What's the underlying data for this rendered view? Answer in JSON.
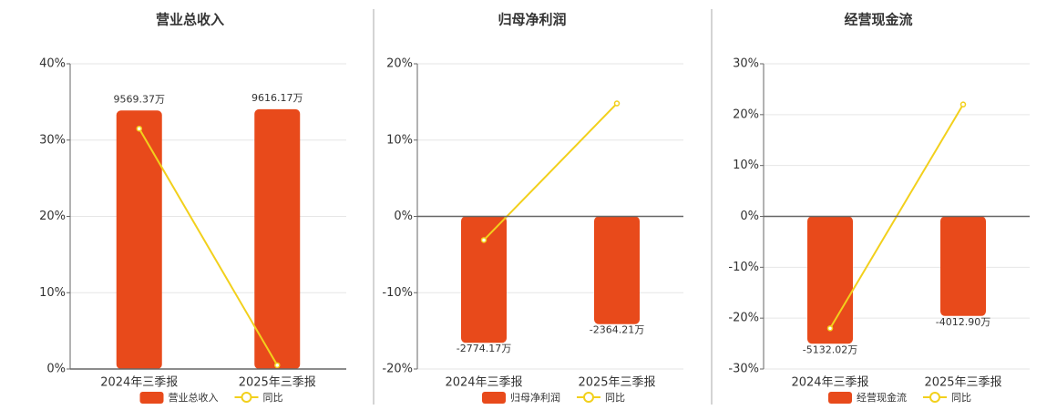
{
  "chart_data": [
    {
      "type": "bar",
      "title": "营业总收入",
      "categories": [
        "2024年三季报",
        "2025年三季报"
      ],
      "series": [
        {
          "name": "营业总收入",
          "color": "#e84a1b",
          "axis": "y2",
          "values": [
            9569.37,
            9616.17
          ],
          "value_labels": [
            "9569.37万",
            "9616.17万"
          ]
        },
        {
          "name": "同比",
          "type": "line",
          "color": "#f2d01c",
          "values": [
            31.5,
            0.5
          ]
        }
      ],
      "ylim": [
        0,
        40
      ],
      "yticks": [
        {
          "value": 0,
          "label": "0%"
        },
        {
          "value": 10,
          "label": "10%"
        },
        {
          "value": 20,
          "label": "20%"
        },
        {
          "value": 30,
          "label": "30%"
        },
        {
          "value": 40,
          "label": "40%"
        }
      ],
      "y2lim": [
        0,
        11300
      ],
      "grid": true
    },
    {
      "type": "bar",
      "title": "归母净利润",
      "categories": [
        "2024年三季报",
        "2025年三季报"
      ],
      "series": [
        {
          "name": "归母净利润",
          "color": "#e84a1b",
          "axis": "y2",
          "values": [
            -2774.17,
            -2364.21
          ],
          "value_labels": [
            "-2774.17万",
            "-2364.21万"
          ]
        },
        {
          "name": "同比",
          "type": "line",
          "color": "#f2d01c",
          "values": [
            -3.1,
            14.8
          ]
        }
      ],
      "ylim": [
        -20,
        20
      ],
      "yticks": [
        {
          "value": -20,
          "label": "-20%"
        },
        {
          "value": -10,
          "label": "-10%"
        },
        {
          "value": 0,
          "label": "0%"
        },
        {
          "value": 10,
          "label": "10%"
        },
        {
          "value": 20,
          "label": "20%"
        }
      ],
      "y2lim": [
        -3350,
        3350
      ],
      "grid": true
    },
    {
      "type": "bar",
      "title": "经营现金流",
      "categories": [
        "2024年三季报",
        "2025年三季报"
      ],
      "series": [
        {
          "name": "经营现金流",
          "color": "#e84a1b",
          "axis": "y2",
          "values": [
            -5132.02,
            -4012.9
          ],
          "value_labels": [
            "-5132.02万",
            "-4012.90万"
          ]
        },
        {
          "name": "同比",
          "type": "line",
          "color": "#f2d01c",
          "values": [
            -22,
            22
          ]
        }
      ],
      "ylim": [
        -30,
        30
      ],
      "yticks": [
        {
          "value": -30,
          "label": "-30%"
        },
        {
          "value": -20,
          "label": "-20%"
        },
        {
          "value": -10,
          "label": "-10%"
        },
        {
          "value": 0,
          "label": "0%"
        },
        {
          "value": 10,
          "label": "10%"
        },
        {
          "value": 20,
          "label": "20%"
        },
        {
          "value": 30,
          "label": "30%"
        }
      ],
      "y2lim": [
        -6150,
        6150
      ],
      "grid": true
    }
  ]
}
